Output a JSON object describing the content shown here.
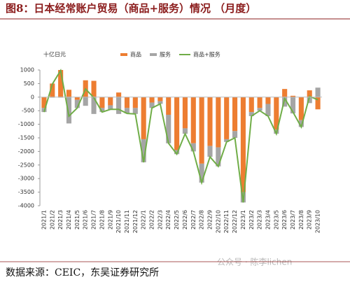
{
  "title": "图8：日本经常账户贸易（商品+服务）情况 （月度）",
  "source": "数据来源：CEIC，东吴证券研究所",
  "watermark": "公众号 · 陈李lichen",
  "chart_data": {
    "type": "bar",
    "unit_label": "十亿日元",
    "categories": [
      "2021/1",
      "2021/2",
      "2021/3",
      "2021/4",
      "2021/5",
      "2021/6",
      "2021/7",
      "2021/8",
      "2021/9",
      "2021/10",
      "2021/11",
      "2021/12",
      "2022/1",
      "2022/2",
      "2022/3",
      "2022/4",
      "2022/5",
      "2022/6",
      "2022/7",
      "2022/8",
      "2022/9",
      "2022/10",
      "2022/11",
      "2022/12",
      "2023/1",
      "2023/2",
      "2023/3",
      "2023/4",
      "2023/5",
      "2023/6",
      "2023/7",
      "2023/8",
      "2023/9",
      "2023/10"
    ],
    "series": [
      {
        "name": "商品",
        "color": "#ed7d31",
        "values": [
          -400,
          500,
          1000,
          270,
          -100,
          620,
          600,
          -400,
          -300,
          170,
          -400,
          -400,
          -1550,
          -200,
          -150,
          -650,
          -1950,
          -1150,
          -1700,
          -2450,
          -1800,
          -1850,
          -1550,
          -1250,
          -3500,
          -550,
          -400,
          -250,
          -1200,
          300,
          50,
          -850,
          250,
          -450
        ]
      },
      {
        "name": "服务",
        "color": "#a5a5a5",
        "values": [
          -150,
          -20,
          -20,
          -970,
          -300,
          -320,
          -620,
          -150,
          -150,
          -620,
          -200,
          -220,
          -850,
          -200,
          -100,
          -1050,
          -150,
          -200,
          -300,
          -700,
          -400,
          -700,
          -100,
          -250,
          -380,
          -150,
          -100,
          -450,
          -150,
          -350,
          -600,
          -250,
          -220,
          350
        ]
      },
      {
        "name": "商品+服务",
        "type": "line",
        "color": "#70ad47",
        "values": [
          -550,
          480,
          980,
          -700,
          -400,
          300,
          -20,
          -550,
          -450,
          -450,
          -600,
          -620,
          -2400,
          -400,
          -250,
          -1700,
          -2100,
          -1350,
          -2000,
          -3150,
          -2200,
          -2550,
          -1650,
          -1500,
          -3880,
          -700,
          -500,
          -700,
          -1350,
          -50,
          -550,
          -1100,
          30,
          -100
        ]
      }
    ],
    "ylim": [
      -4000,
      1000
    ],
    "yticks": [
      -4000,
      -3500,
      -3000,
      -2500,
      -2000,
      -1500,
      -1000,
      -500,
      0,
      500,
      1000
    ],
    "legend": "top"
  }
}
